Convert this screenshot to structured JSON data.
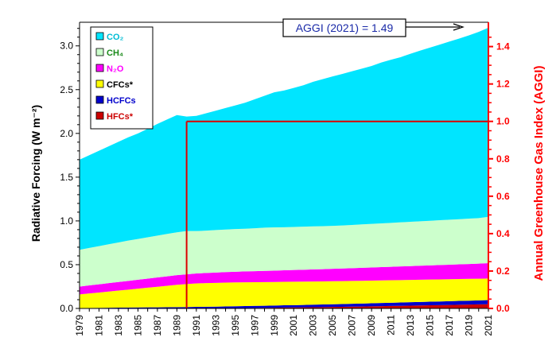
{
  "chart_data": {
    "type": "area",
    "stacked": true,
    "x": [
      1979,
      1980,
      1981,
      1982,
      1983,
      1984,
      1985,
      1986,
      1987,
      1988,
      1989,
      1990,
      1991,
      1992,
      1993,
      1994,
      1995,
      1996,
      1997,
      1998,
      1999,
      2000,
      2001,
      2002,
      2003,
      2004,
      2005,
      2006,
      2007,
      2008,
      2009,
      2010,
      2011,
      2012,
      2013,
      2014,
      2015,
      2016,
      2017,
      2018,
      2019,
      2020,
      2021
    ],
    "x_tick_labels": [
      "1979",
      "1981",
      "1983",
      "1985",
      "1987",
      "1989",
      "1991",
      "1993",
      "1995",
      "1997",
      "1999",
      "2001",
      "2003",
      "2005",
      "2007",
      "2009",
      "2011",
      "2013",
      "2015",
      "2017",
      "2019",
      "2021"
    ],
    "ylabel": "Radiative Forcing (W m⁻²)",
    "ylim": [
      0,
      3.27
    ],
    "y_ticks": [
      "0.0",
      "0.5",
      "1.0",
      "1.5",
      "2.0",
      "2.5",
      "3.0"
    ],
    "y2label": "Annual Greenhouse Gas Index (AGGI)",
    "y2lim": [
      0,
      1.53
    ],
    "y2_ticks": [
      "0.0",
      "0.2",
      "0.4",
      "0.6",
      "0.8",
      "1.0",
      "1.2",
      "1.4"
    ],
    "series": [
      {
        "name": "HFCs*",
        "color": "#cc0000",
        "values": [
          0.0,
          0.0,
          0.0,
          0.0,
          0.0,
          0.0,
          0.0,
          0.0,
          0.0,
          0.0,
          0.0,
          0.0,
          0.001,
          0.001,
          0.002,
          0.003,
          0.004,
          0.005,
          0.006,
          0.007,
          0.008,
          0.01,
          0.011,
          0.012,
          0.014,
          0.015,
          0.017,
          0.018,
          0.02,
          0.022,
          0.024,
          0.026,
          0.028,
          0.03,
          0.032,
          0.034,
          0.036,
          0.038,
          0.04,
          0.042,
          0.044,
          0.046,
          0.048
        ]
      },
      {
        "name": "HCFCs",
        "color": "#0000cc",
        "values": [
          0.005,
          0.006,
          0.007,
          0.008,
          0.009,
          0.01,
          0.011,
          0.012,
          0.013,
          0.014,
          0.015,
          0.016,
          0.017,
          0.018,
          0.019,
          0.02,
          0.021,
          0.022,
          0.023,
          0.024,
          0.025,
          0.026,
          0.027,
          0.028,
          0.029,
          0.03,
          0.031,
          0.032,
          0.033,
          0.034,
          0.035,
          0.036,
          0.037,
          0.038,
          0.039,
          0.04,
          0.041,
          0.042,
          0.043,
          0.044,
          0.045,
          0.046,
          0.047
        ]
      },
      {
        "name": "CFCs*",
        "color": "#ffff00",
        "values": [
          0.155,
          0.165,
          0.175,
          0.185,
          0.195,
          0.205,
          0.215,
          0.225,
          0.235,
          0.245,
          0.255,
          0.262,
          0.268,
          0.27,
          0.271,
          0.272,
          0.272,
          0.272,
          0.271,
          0.27,
          0.269,
          0.268,
          0.267,
          0.266,
          0.265,
          0.264,
          0.263,
          0.262,
          0.261,
          0.26,
          0.259,
          0.258,
          0.257,
          0.256,
          0.255,
          0.254,
          0.253,
          0.252,
          0.251,
          0.25,
          0.249,
          0.248,
          0.247
        ]
      },
      {
        "name": "N₂O",
        "color": "#ff00ff",
        "values": [
          0.09,
          0.092,
          0.094,
          0.096,
          0.098,
          0.1,
          0.102,
          0.104,
          0.106,
          0.108,
          0.11,
          0.112,
          0.114,
          0.116,
          0.118,
          0.12,
          0.122,
          0.124,
          0.126,
          0.128,
          0.13,
          0.132,
          0.134,
          0.136,
          0.138,
          0.14,
          0.142,
          0.144,
          0.146,
          0.148,
          0.15,
          0.152,
          0.154,
          0.156,
          0.158,
          0.16,
          0.162,
          0.164,
          0.166,
          0.168,
          0.17,
          0.172,
          0.176
        ]
      },
      {
        "name": "CH₄",
        "color": "#ccffcc",
        "values": [
          0.42,
          0.428,
          0.436,
          0.444,
          0.452,
          0.46,
          0.466,
          0.472,
          0.478,
          0.484,
          0.49,
          0.494,
          0.484,
          0.484,
          0.486,
          0.486,
          0.488,
          0.488,
          0.49,
          0.494,
          0.494,
          0.492,
          0.492,
          0.492,
          0.492,
          0.491,
          0.49,
          0.492,
          0.494,
          0.496,
          0.498,
          0.5,
          0.502,
          0.504,
          0.506,
          0.508,
          0.51,
          0.512,
          0.514,
          0.516,
          0.518,
          0.52,
          0.529
        ]
      },
      {
        "name": "CO₂",
        "color": "#00e5ff",
        "values": [
          1.03,
          1.06,
          1.09,
          1.12,
          1.15,
          1.18,
          1.206,
          1.24,
          1.276,
          1.308,
          1.34,
          1.308,
          1.316,
          1.341,
          1.364,
          1.389,
          1.413,
          1.439,
          1.474,
          1.507,
          1.544,
          1.562,
          1.589,
          1.616,
          1.652,
          1.68,
          1.708,
          1.732,
          1.756,
          1.78,
          1.804,
          1.838,
          1.864,
          1.888,
          1.92,
          1.95,
          1.978,
          2.006,
          2.036,
          2.064,
          2.094,
          2.128,
          2.16
        ]
      }
    ],
    "total_forcing_estimate_2021": 3.207,
    "reference_year": 1990,
    "reference_aggi": 1.0,
    "annotation": {
      "text": "AGGI (2021) = 1.49"
    },
    "legend_order": [
      "CO₂",
      "CH₄",
      "N₂O",
      "CFCs*",
      "HCFCs",
      "HFCs*"
    ],
    "legend_text_colors": [
      "#00bcd4",
      "#1a8a1a",
      "#ff00ff",
      "#000000",
      "#0000cc",
      "#cc0000"
    ],
    "legend_position": "top-left",
    "grid": false
  }
}
